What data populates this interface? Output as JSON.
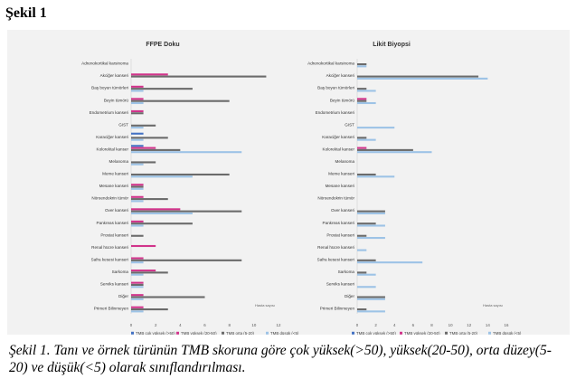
{
  "heading": "Şekil 1",
  "caption": {
    "prefix": "Şekil 1",
    "text": ". Tanı ve örnek türünün TMB skoruna göre çok yüksek(>50), yüksek(20-50), orta düzey(5-20) ve düşük(<5) olarak sınıflandırılması."
  },
  "chart_data": [
    {
      "type": "bar",
      "orientation": "horizontal",
      "title": "FFPE Doku",
      "xlabel": "Hasta sayısı",
      "xlim": [
        0,
        12
      ],
      "xticks": [
        0,
        2,
        4,
        6,
        8,
        10,
        12
      ],
      "grid": false,
      "legend_position": "bottom",
      "categories": [
        "Adrenokortikal karsinoma",
        "Akciğer kanseri",
        "Baş boyun tümörleri",
        "Beyin tümörü",
        "Endometrium kanseri",
        "GIST",
        "Karaciğer kanseri",
        "Kolorektal kanser",
        "Melanoma",
        "Meme kanseri",
        "Mesane kanseri",
        "Nöroendokrin tümör",
        "Over kanseri",
        "Pankreas kanseri",
        "Prostat kanseri",
        "Renal hücre kanseri",
        "Safra kesesi kanseri",
        "Sarkoma",
        "Serviks kanseri",
        "Diğer",
        "Primeri Bilinmeyen"
      ],
      "series": [
        {
          "name": "TMB çok yüksek (>50)",
          "color": "#4472c4",
          "values": [
            0,
            0,
            0,
            0,
            0,
            0,
            1,
            1,
            0,
            0,
            0,
            0,
            0,
            0,
            0,
            0,
            0,
            0,
            0,
            0,
            0
          ]
        },
        {
          "name": "TMB yüksek (20-50)",
          "color": "#d1348b",
          "values": [
            0,
            3,
            1,
            1,
            1,
            0,
            0,
            2,
            0,
            0,
            1,
            1,
            4,
            1,
            0,
            2,
            1,
            2,
            1,
            1,
            1
          ]
        },
        {
          "name": "TMB orta (5-20)",
          "color": "#6b6b6b",
          "values": [
            0,
            11,
            5,
            8,
            1,
            2,
            3,
            4,
            2,
            8,
            1,
            3,
            9,
            5,
            1,
            0,
            9,
            3,
            1,
            6,
            3
          ]
        },
        {
          "name": "TMB düşük (<5)",
          "color": "#9dc3e6",
          "values": [
            0,
            0,
            1,
            1,
            0,
            1,
            1,
            9,
            1,
            5,
            1,
            1,
            5,
            1,
            0,
            0,
            1,
            1,
            1,
            1,
            1
          ]
        }
      ]
    },
    {
      "type": "bar",
      "orientation": "horizontal",
      "title": "Likit Biyopsi",
      "xlabel": "Hasta sayısı",
      "xlim": [
        0,
        16
      ],
      "xticks": [
        0,
        2,
        4,
        6,
        8,
        10,
        12,
        14,
        16
      ],
      "grid": false,
      "legend_position": "bottom",
      "categories": [
        "Adrenokortikal karsinoma",
        "Akciğer kanseri",
        "Baş boyun tümörleri",
        "Beyin tümörü",
        "Endometrium kanseri",
        "GIST",
        "Karaciğer kanseri",
        "Kolorektal kanser",
        "Melanoma",
        "Meme kanseri",
        "Mesane kanseri",
        "Nöroendokrin tümör",
        "Over kanseri",
        "Pankreas kanseri",
        "Prostat kanseri",
        "Renal hücre kanseri",
        "Safra kesesi kanseri",
        "Sarkoma",
        "Serviks kanseri",
        "Diğer",
        "Primeri Bilinmeyen"
      ],
      "series": [
        {
          "name": "TMB çok yüksek (>50)",
          "color": "#4472c4",
          "values": [
            0,
            0,
            0,
            0,
            0,
            0,
            0,
            0,
            0,
            0,
            0,
            0,
            0,
            0,
            0,
            0,
            0,
            0,
            0,
            0,
            0
          ]
        },
        {
          "name": "TMB yüksek (20-50)",
          "color": "#d1348b",
          "values": [
            0,
            0,
            0,
            1,
            0,
            0,
            0,
            1,
            0,
            0,
            0,
            0,
            0,
            0,
            0,
            0,
            0,
            0,
            0,
            0,
            0
          ]
        },
        {
          "name": "TMB orta (5-20)",
          "color": "#6b6b6b",
          "values": [
            1,
            13,
            1,
            1,
            0,
            0,
            1,
            6,
            0,
            2,
            0,
            0,
            3,
            2,
            1,
            0,
            2,
            1,
            0,
            3,
            1
          ]
        },
        {
          "name": "TMB düşük (<5)",
          "color": "#9dc3e6",
          "values": [
            1,
            14,
            2,
            2,
            0,
            4,
            2,
            8,
            0,
            4,
            0,
            0,
            3,
            3,
            3,
            1,
            7,
            2,
            2,
            3,
            3
          ]
        }
      ]
    }
  ]
}
